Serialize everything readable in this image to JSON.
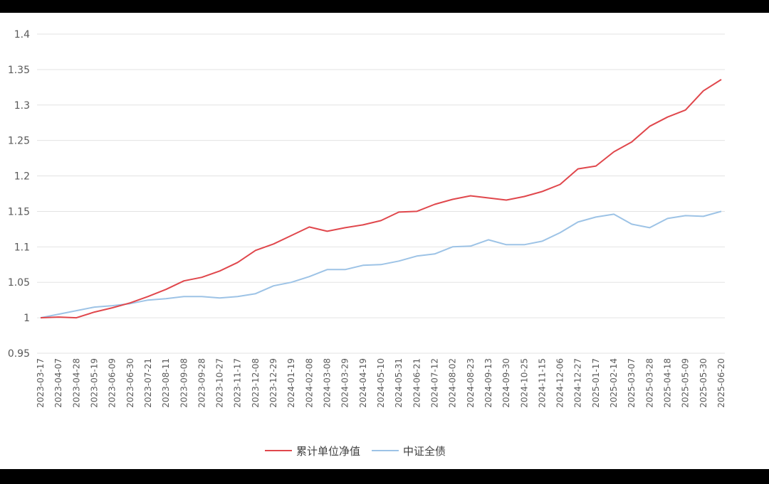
{
  "chart_data": {
    "type": "line",
    "categories": [
      "2023-03-17",
      "2023-04-07",
      "2023-04-28",
      "2023-05-19",
      "2023-06-09",
      "2023-06-30",
      "2023-07-21",
      "2023-08-11",
      "2023-09-08",
      "2023-09-28",
      "2023-10-27",
      "2023-11-17",
      "2023-12-08",
      "2023-12-29",
      "2024-01-19",
      "2024-02-08",
      "2024-03-08",
      "2024-03-29",
      "2024-04-19",
      "2024-05-10",
      "2024-05-31",
      "2024-06-21",
      "2024-07-12",
      "2024-08-02",
      "2024-08-23",
      "2024-09-13",
      "2024-09-30",
      "2024-10-25",
      "2024-11-15",
      "2024-12-06",
      "2024-12-27",
      "2025-01-17",
      "2025-02-14",
      "2025-03-07",
      "2025-03-28",
      "2025-04-18",
      "2025-05-09",
      "2025-05-30",
      "2025-06-20"
    ],
    "series": [
      {
        "name": "累计单位净值",
        "color": "#e0474c",
        "values": [
          1.0,
          1.001,
          1.0,
          1.008,
          1.014,
          1.021,
          1.03,
          1.04,
          1.052,
          1.057,
          1.066,
          1.078,
          1.095,
          1.104,
          1.116,
          1.128,
          1.122,
          1.127,
          1.131,
          1.137,
          1.149,
          1.15,
          1.16,
          1.167,
          1.172,
          1.169,
          1.166,
          1.171,
          1.178,
          1.188,
          1.21,
          1.214,
          1.234,
          1.248,
          1.27,
          1.283,
          1.293,
          1.32,
          1.336
        ]
      },
      {
        "name": "中证全债",
        "color": "#9dc3e6",
        "values": [
          1.0,
          1.005,
          1.01,
          1.015,
          1.017,
          1.02,
          1.025,
          1.027,
          1.03,
          1.03,
          1.028,
          1.03,
          1.034,
          1.045,
          1.05,
          1.058,
          1.068,
          1.068,
          1.074,
          1.075,
          1.08,
          1.087,
          1.09,
          1.1,
          1.101,
          1.11,
          1.103,
          1.103,
          1.108,
          1.12,
          1.135,
          1.142,
          1.146,
          1.132,
          1.127,
          1.14,
          1.144,
          1.143,
          1.15
        ]
      }
    ],
    "ylim": [
      0.95,
      1.4
    ],
    "yticks": [
      0.95,
      1,
      1.05,
      1.1,
      1.15,
      1.2,
      1.25,
      1.3,
      1.35,
      1.4
    ],
    "grid": true,
    "legend": "bottom"
  }
}
